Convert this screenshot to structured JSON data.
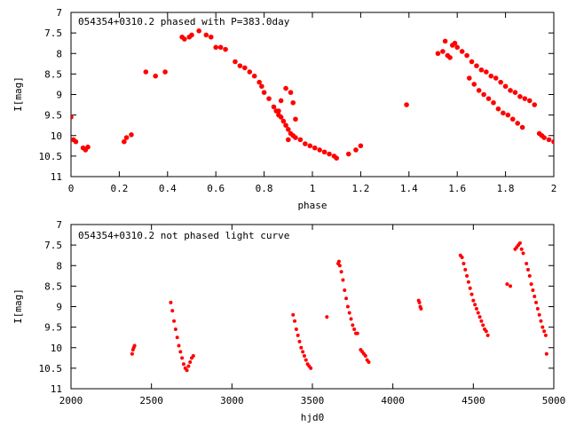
{
  "chart_data": [
    {
      "type": "scatter",
      "title": "054354+0310.2 phased with P=383.0day",
      "xlabel": "phase",
      "ylabel": "I[mag]",
      "xlim": [
        0,
        2
      ],
      "ylim": [
        7,
        11
      ],
      "y_inverted": true,
      "grid": false,
      "x_ticks": [
        0,
        0.2,
        0.4,
        0.6,
        0.8,
        1,
        1.2,
        1.4,
        1.6,
        1.8,
        2
      ],
      "x_tick_labels": [
        "0",
        "0.2",
        "0.4",
        "0.6",
        "0.8",
        "1",
        "1.2",
        "1.4",
        "1.6",
        "1.8",
        "2"
      ],
      "y_ticks": [
        7,
        7.5,
        8,
        8.5,
        9,
        9.5,
        10,
        10.5,
        11
      ],
      "y_tick_labels": [
        "7",
        "7.5",
        "8",
        "8.5",
        "9",
        "9.5",
        "10",
        "10.5",
        "11"
      ],
      "marker_color": "#ff0000",
      "series": [
        {
          "x": [
            0.0,
            0.01,
            0.02,
            0.05,
            0.06,
            0.07,
            0.22,
            0.23,
            0.25,
            0.31,
            0.35,
            0.39,
            0.46,
            0.47,
            0.49,
            0.5,
            0.53,
            0.56,
            0.58,
            0.6,
            0.62,
            0.64,
            0.68,
            0.7,
            0.72,
            0.74,
            0.76,
            0.78,
            0.79,
            0.8,
            0.82,
            0.84,
            0.85,
            0.86,
            0.87,
            0.88,
            0.89,
            0.9,
            0.91,
            0.92,
            0.93,
            0.95,
            0.97,
            0.99,
            1.01,
            1.03,
            1.05,
            1.07,
            1.09,
            1.1,
            1.15,
            1.18,
            1.2,
            1.39,
            1.52,
            1.54,
            1.55,
            1.56,
            1.57,
            1.58,
            1.59,
            1.6,
            1.62,
            1.64,
            1.66,
            1.68,
            1.7,
            1.72,
            1.74,
            1.76,
            1.78,
            1.8,
            1.82,
            1.84,
            1.86,
            1.88,
            1.9,
            1.92,
            1.94,
            1.95,
            1.96,
            1.98,
            2.0,
            1.65,
            1.67,
            1.69,
            1.71,
            1.73,
            1.75,
            1.77,
            1.79,
            1.81,
            1.83,
            1.85,
            1.87,
            0.89,
            0.91,
            0.92,
            0.87,
            0.86,
            0.9,
            0.93
          ],
          "y": [
            9.55,
            10.1,
            10.15,
            10.3,
            10.35,
            10.28,
            10.15,
            10.05,
            9.98,
            8.45,
            8.55,
            8.45,
            7.6,
            7.65,
            7.6,
            7.55,
            7.45,
            7.55,
            7.6,
            7.85,
            7.85,
            7.9,
            8.2,
            8.3,
            8.35,
            8.45,
            8.55,
            8.7,
            8.8,
            8.95,
            9.1,
            9.3,
            9.4,
            9.5,
            9.55,
            9.65,
            9.75,
            9.85,
            9.95,
            10.0,
            10.05,
            10.1,
            10.2,
            10.25,
            10.3,
            10.35,
            10.4,
            10.45,
            10.5,
            10.55,
            10.45,
            10.35,
            10.25,
            9.25,
            8.0,
            7.95,
            7.7,
            8.05,
            8.1,
            7.8,
            7.75,
            7.85,
            7.95,
            8.05,
            8.2,
            8.3,
            8.4,
            8.45,
            8.55,
            8.6,
            8.7,
            8.8,
            8.9,
            8.95,
            9.05,
            9.1,
            9.15,
            9.25,
            9.95,
            10.0,
            10.05,
            10.1,
            10.15,
            8.6,
            8.75,
            8.9,
            9.0,
            9.1,
            9.2,
            9.35,
            9.45,
            9.5,
            9.6,
            9.7,
            9.8,
            8.85,
            8.95,
            9.2,
            9.15,
            9.4,
            10.1,
            9.6
          ]
        }
      ]
    },
    {
      "type": "scatter",
      "title": "054354+0310.2 not phased light curve",
      "xlabel": "hjd0",
      "ylabel": "I[mag]",
      "xlim": [
        2000,
        5000
      ],
      "ylim": [
        7,
        11
      ],
      "y_inverted": true,
      "grid": false,
      "x_ticks": [
        2000,
        2500,
        3000,
        3500,
        4000,
        4500,
        5000
      ],
      "x_tick_labels": [
        "2000",
        "2500",
        "3000",
        "3500",
        "4000",
        "4500",
        "5000"
      ],
      "y_ticks": [
        7,
        7.5,
        8,
        8.5,
        9,
        9.5,
        10,
        10.5,
        11
      ],
      "y_tick_labels": [
        "7",
        "7.5",
        "8",
        "8.5",
        "9",
        "9.5",
        "10",
        "10.5",
        "11"
      ],
      "marker_color": "#ff0000",
      "series": [
        {
          "x": [
            2380,
            2385,
            2390,
            2395,
            2620,
            2630,
            2640,
            2650,
            2660,
            2670,
            2680,
            2690,
            2700,
            2710,
            2720,
            2730,
            2740,
            2750,
            2760,
            3380,
            3390,
            3400,
            3410,
            3420,
            3430,
            3440,
            3450,
            3460,
            3470,
            3480,
            3490,
            3590,
            3660,
            3665,
            3670,
            3680,
            3690,
            3700,
            3710,
            3720,
            3730,
            3740,
            3750,
            3760,
            3770,
            3780,
            3800,
            3810,
            3820,
            3830,
            3840,
            3850,
            4160,
            4165,
            4170,
            4175,
            4420,
            4430,
            4440,
            4450,
            4460,
            4470,
            4480,
            4490,
            4500,
            4510,
            4520,
            4530,
            4540,
            4550,
            4560,
            4570,
            4580,
            4590,
            4710,
            4730,
            4760,
            4770,
            4780,
            4790,
            4800,
            4810,
            4830,
            4840,
            4850,
            4860,
            4870,
            4880,
            4890,
            4900,
            4910,
            4920,
            4930,
            4940,
            4950,
            4955
          ],
          "y": [
            10.15,
            10.05,
            10.0,
            9.95,
            8.9,
            9.1,
            9.35,
            9.55,
            9.75,
            9.95,
            10.1,
            10.25,
            10.4,
            10.5,
            10.55,
            10.45,
            10.35,
            10.25,
            10.2,
            9.2,
            9.35,
            9.55,
            9.7,
            9.85,
            10.0,
            10.1,
            10.2,
            10.3,
            10.4,
            10.45,
            10.5,
            9.25,
            7.95,
            7.9,
            8.0,
            8.15,
            8.35,
            8.6,
            8.8,
            9.0,
            9.15,
            9.3,
            9.45,
            9.55,
            9.65,
            9.65,
            10.05,
            10.1,
            10.15,
            10.2,
            10.3,
            10.35,
            8.85,
            8.9,
            9.0,
            9.05,
            7.75,
            7.8,
            7.95,
            8.1,
            8.25,
            8.4,
            8.55,
            8.7,
            8.85,
            8.95,
            9.05,
            9.15,
            9.25,
            9.35,
            9.45,
            9.55,
            9.6,
            9.7,
            8.45,
            8.5,
            7.6,
            7.55,
            7.5,
            7.45,
            7.6,
            7.7,
            7.95,
            8.1,
            8.25,
            8.45,
            8.6,
            8.75,
            8.9,
            9.05,
            9.2,
            9.35,
            9.5,
            9.6,
            9.7,
            10.15
          ]
        }
      ]
    }
  ]
}
